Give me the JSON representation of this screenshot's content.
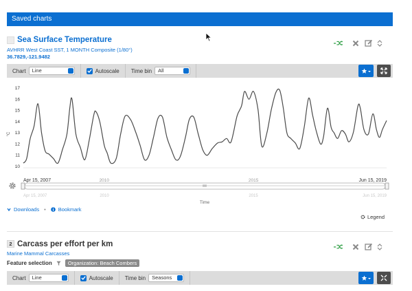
{
  "header": {
    "title": "Saved charts"
  },
  "card1": {
    "title": "Sea Surface Temperature",
    "subtitle": "AVHRR West Coast SST, 1 MONTH Composite (1/80°)",
    "coords": "36.7829,-121.9482",
    "toolbar": {
      "chart_label": "Chart",
      "chart_value": "Line",
      "autoscale_label": "Autoscale",
      "timebin_label": "Time bin",
      "timebin_value": "All"
    },
    "links": {
      "downloads": "Downloads",
      "bookmark": "Bookmark"
    },
    "legend_label": "Legend",
    "range_start": "Apr 15, 2007",
    "range_end": "Jun 15, 2019",
    "nav_start": "Apr 15, 2007",
    "nav_end": "Jun 15, 2019",
    "nav_ticks": [
      "2010",
      "2015"
    ]
  },
  "card2": {
    "number": "2",
    "title": "Carcass per effort per km",
    "subtitle": "Marine Mammal Carcasses",
    "feature_label": "Feature selection",
    "org_badge": "Organization: Beach Combers",
    "toolbar": {
      "chart_label": "Chart",
      "chart_value": "Line",
      "autoscale_label": "Autoscale",
      "timebin_label": "Time bin",
      "timebin_value": "Seasons"
    }
  },
  "colors": {
    "accent": "#0b6fd1",
    "add_green": "#2e9e44",
    "toolbar_bg": "#dcdcdc",
    "line": "#4a4a4a"
  },
  "icons": [
    "shuffle-icon",
    "close-icon",
    "edit-icon",
    "chevron-up-icon",
    "chevron-down-icon",
    "star-icon",
    "expand-icon",
    "gear-icon",
    "download-icon",
    "info-icon",
    "filter-icon",
    "cursor-icon"
  ],
  "chart_data": {
    "type": "line",
    "title": "",
    "xlabel": "Time",
    "ylabel": "°C",
    "x_tick_labels": [
      "2010",
      "2015"
    ],
    "y_ticks": [
      10,
      11,
      12,
      13,
      14,
      15,
      16,
      17
    ],
    "ylim": [
      10,
      17
    ],
    "xlim": [
      2007.29,
      2019.46
    ],
    "grid": false,
    "series": [
      {
        "values": [
          [
            2007.29,
            10.3
          ],
          [
            2007.4,
            10.7
          ],
          [
            2007.52,
            12.5
          ],
          [
            2007.65,
            13.6
          ],
          [
            2007.78,
            15.6
          ],
          [
            2007.9,
            13.0
          ],
          [
            2008.02,
            11.4
          ],
          [
            2008.15,
            11.1
          ],
          [
            2008.3,
            10.7
          ],
          [
            2008.45,
            10.3
          ],
          [
            2008.6,
            11.5
          ],
          [
            2008.75,
            12.9
          ],
          [
            2008.85,
            15.3
          ],
          [
            2008.92,
            16.0
          ],
          [
            2009.05,
            12.9
          ],
          [
            2009.2,
            11.7
          ],
          [
            2009.35,
            10.6
          ],
          [
            2009.5,
            12.4
          ],
          [
            2009.65,
            14.6
          ],
          [
            2009.72,
            14.9
          ],
          [
            2009.85,
            14.0
          ],
          [
            2010.0,
            11.9
          ],
          [
            2010.1,
            11.2
          ],
          [
            2010.22,
            10.3
          ],
          [
            2010.4,
            10.7
          ],
          [
            2010.55,
            12.9
          ],
          [
            2010.7,
            14.5
          ],
          [
            2010.88,
            14.2
          ],
          [
            2011.05,
            13.1
          ],
          [
            2011.2,
            11.9
          ],
          [
            2011.35,
            10.6
          ],
          [
            2011.5,
            11.0
          ],
          [
            2011.65,
            12.6
          ],
          [
            2011.8,
            14.3
          ],
          [
            2011.95,
            14.4
          ],
          [
            2012.1,
            12.6
          ],
          [
            2012.25,
            11.5
          ],
          [
            2012.4,
            10.6
          ],
          [
            2012.55,
            10.9
          ],
          [
            2012.72,
            12.6
          ],
          [
            2012.85,
            14.2
          ],
          [
            2013.0,
            14.4
          ],
          [
            2013.15,
            12.9
          ],
          [
            2013.3,
            11.5
          ],
          [
            2013.45,
            11.0
          ],
          [
            2013.62,
            11.6
          ],
          [
            2013.8,
            12.1
          ],
          [
            2013.95,
            12.2
          ],
          [
            2014.1,
            12.5
          ],
          [
            2014.25,
            12.2
          ],
          [
            2014.45,
            14.5
          ],
          [
            2014.6,
            15.4
          ],
          [
            2014.7,
            16.7
          ],
          [
            2014.85,
            16.0
          ],
          [
            2015.0,
            16.7
          ],
          [
            2015.15,
            15.1
          ],
          [
            2015.28,
            11.8
          ],
          [
            2015.45,
            13.0
          ],
          [
            2015.6,
            15.1
          ],
          [
            2015.75,
            16.6
          ],
          [
            2015.88,
            16.8
          ],
          [
            2016.0,
            15.2
          ],
          [
            2016.12,
            13.0
          ],
          [
            2016.25,
            12.5
          ],
          [
            2016.4,
            12.1
          ],
          [
            2016.55,
            11.6
          ],
          [
            2016.7,
            13.5
          ],
          [
            2016.85,
            16.1
          ],
          [
            2016.98,
            14.6
          ],
          [
            2017.1,
            13.2
          ],
          [
            2017.25,
            12.0
          ],
          [
            2017.35,
            12.7
          ],
          [
            2017.48,
            15.2
          ],
          [
            2017.6,
            13.5
          ],
          [
            2017.7,
            13.0
          ],
          [
            2017.82,
            12.5
          ],
          [
            2017.95,
            13.2
          ],
          [
            2018.08,
            12.9
          ],
          [
            2018.2,
            12.2
          ],
          [
            2018.35,
            13.1
          ],
          [
            2018.5,
            15.4
          ],
          [
            2018.58,
            15.2
          ],
          [
            2018.7,
            13.3
          ],
          [
            2018.85,
            12.9
          ],
          [
            2019.0,
            14.7
          ],
          [
            2019.12,
            13.3
          ],
          [
            2019.22,
            12.6
          ],
          [
            2019.32,
            13.3
          ],
          [
            2019.46,
            14.1
          ]
        ]
      }
    ]
  }
}
